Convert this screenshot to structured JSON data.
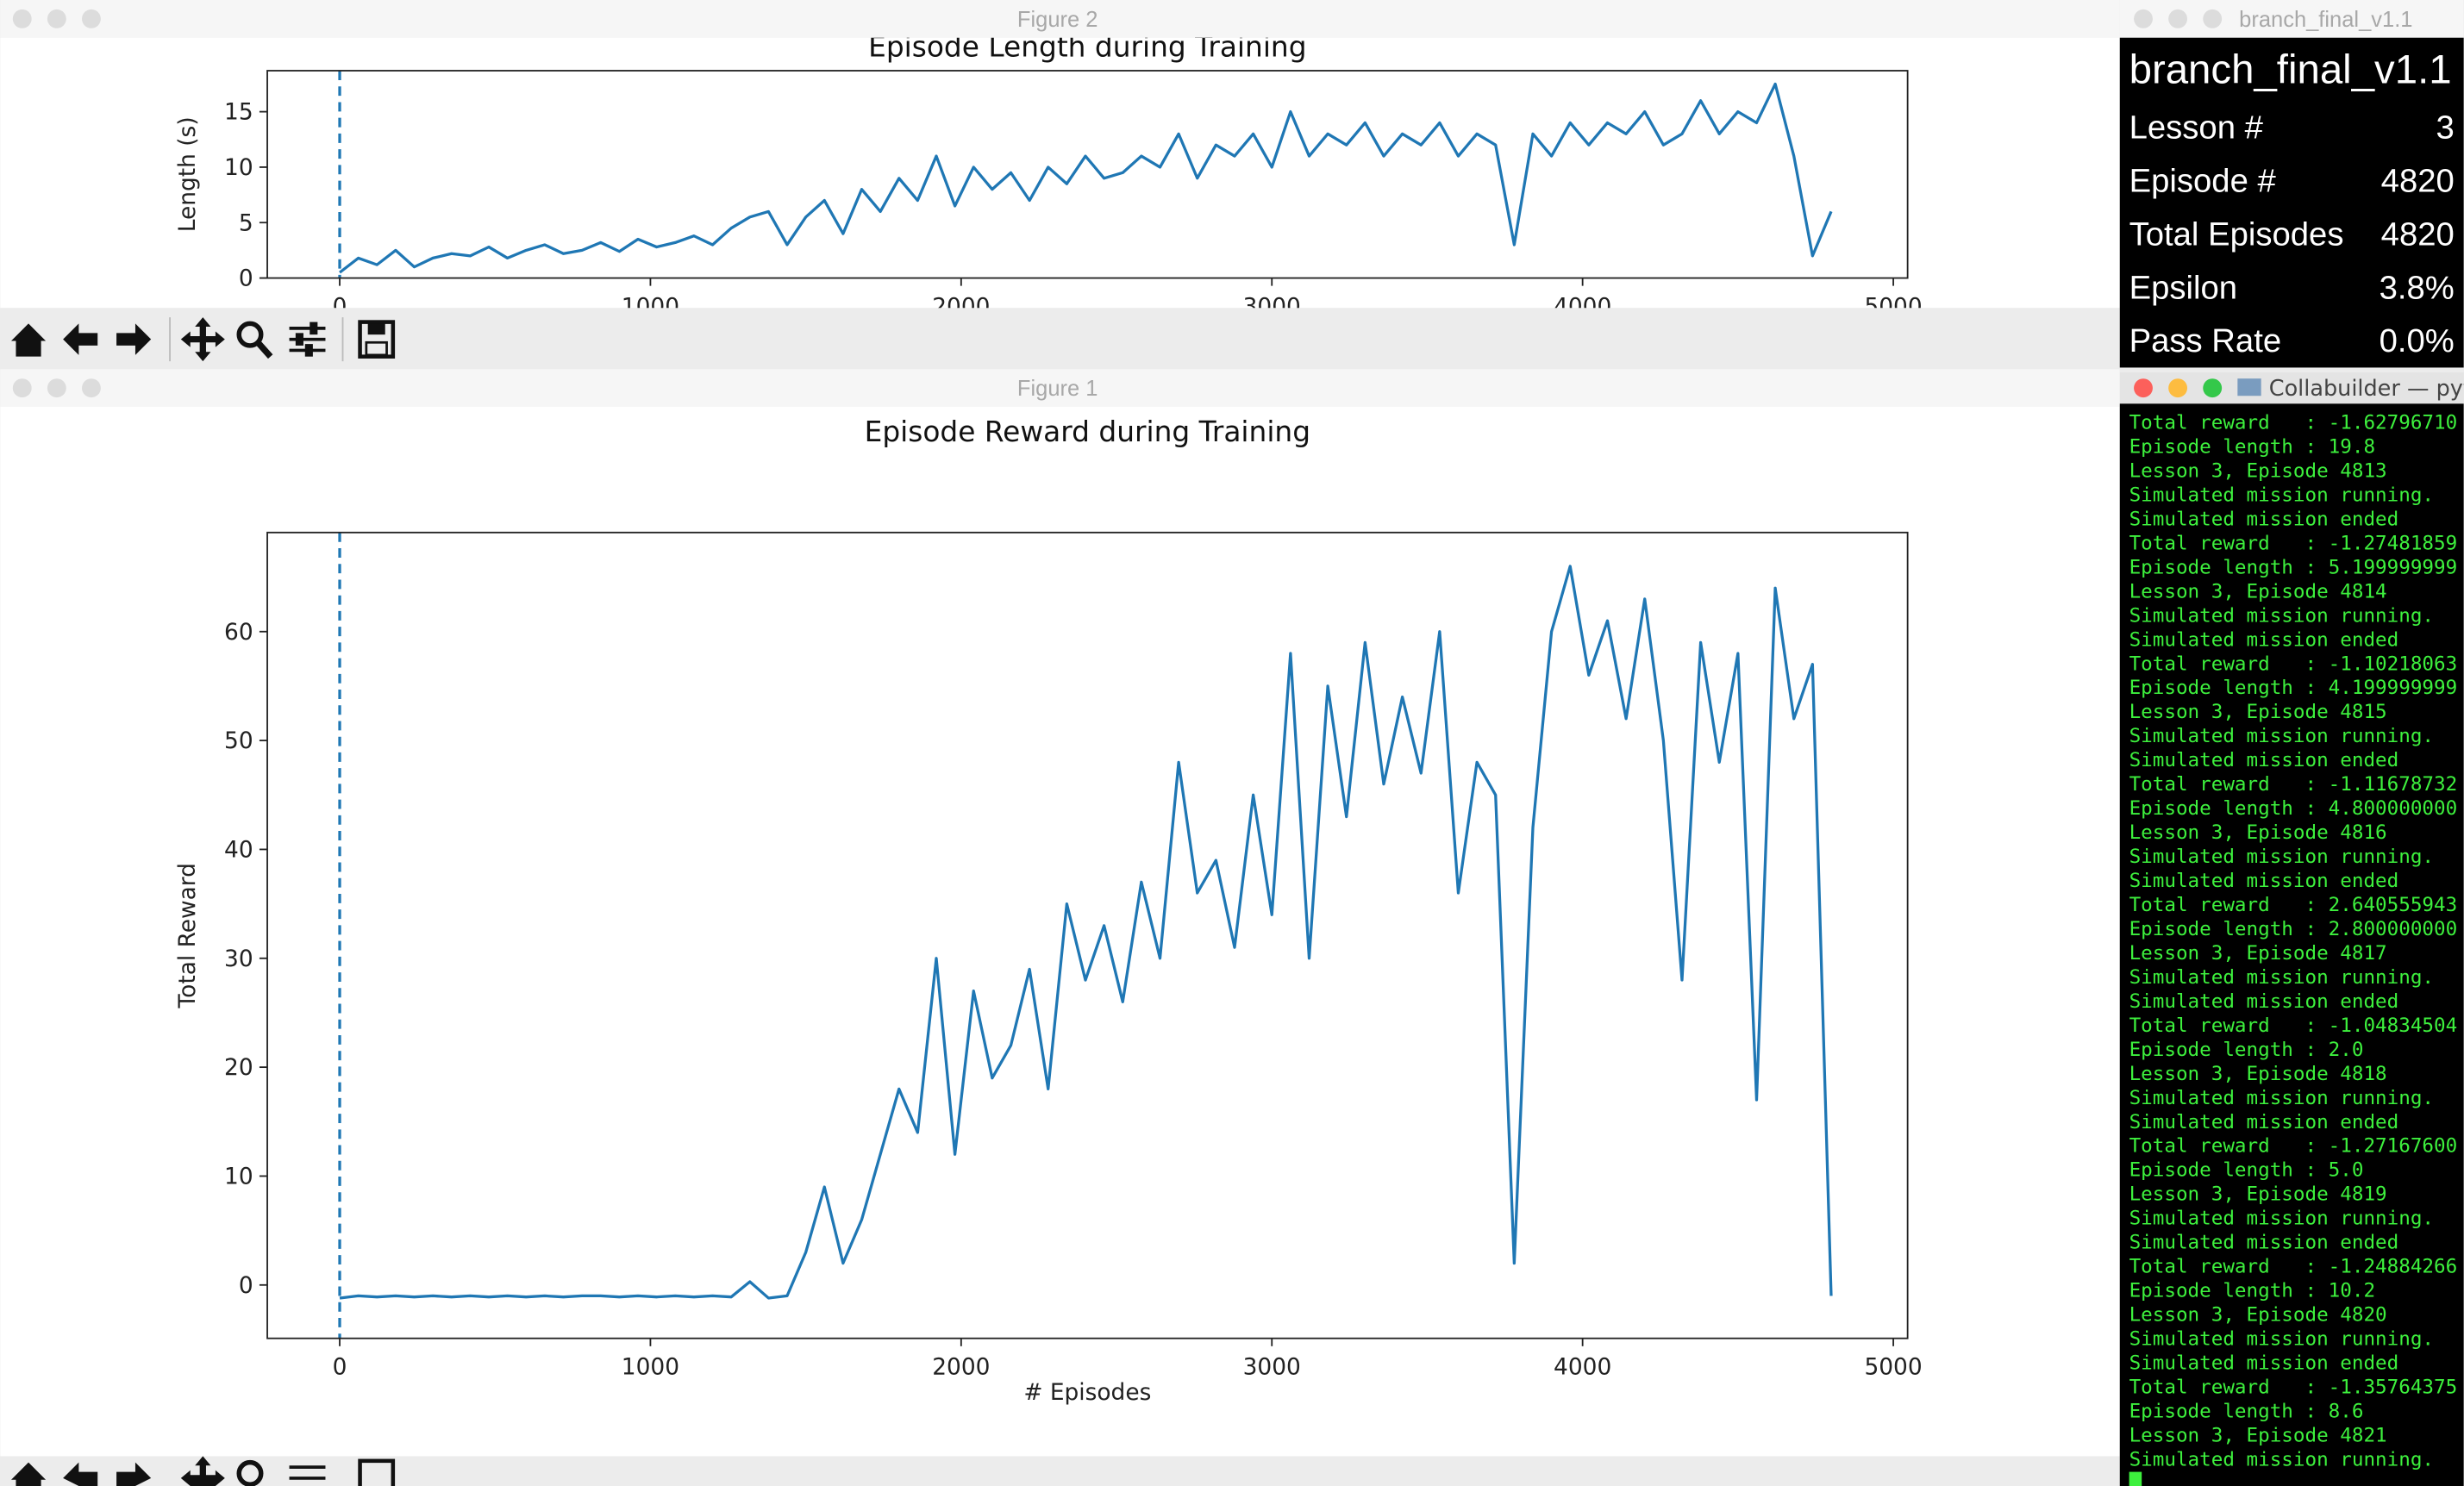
{
  "chart_data": [
    {
      "type": "line",
      "title": "Episode Length during Training",
      "ylabel": "Length (s)",
      "color": "#1f77b4",
      "vline": 0,
      "x": [
        0,
        60,
        120,
        180,
        240,
        300,
        360,
        420,
        480,
        540,
        600,
        660,
        720,
        780,
        840,
        900,
        960,
        1020,
        1080,
        1140,
        1200,
        1260,
        1320,
        1380,
        1440,
        1500,
        1560,
        1620,
        1680,
        1740,
        1800,
        1860,
        1920,
        1980,
        2040,
        2100,
        2160,
        2220,
        2280,
        2340,
        2400,
        2460,
        2520,
        2580,
        2640,
        2700,
        2760,
        2820,
        2880,
        2940,
        3000,
        3060,
        3120,
        3180,
        3240,
        3300,
        3360,
        3420,
        3480,
        3540,
        3600,
        3660,
        3720,
        3780,
        3840,
        3900,
        3960,
        4020,
        4080,
        4140,
        4200,
        4260,
        4320,
        4380,
        4440,
        4500,
        4560,
        4620,
        4680,
        4740,
        4800
      ],
      "values": [
        0.5,
        1.8,
        1.2,
        2.5,
        1,
        1.8,
        2.2,
        2,
        2.8,
        1.8,
        2.5,
        3,
        2.2,
        2.5,
        3.2,
        2.4,
        3.5,
        2.8,
        3.2,
        3.8,
        3,
        4.5,
        5.5,
        6,
        3,
        5.5,
        7,
        4,
        8,
        6,
        9,
        7,
        11,
        6.5,
        10,
        8,
        9.5,
        7,
        10,
        8.5,
        11,
        9,
        9.5,
        11,
        10,
        13,
        9,
        12,
        11,
        13,
        10,
        15,
        11,
        13,
        12,
        14,
        11,
        13,
        12,
        14,
        11,
        13,
        12,
        3,
        13,
        11,
        14,
        12,
        14,
        13,
        15,
        12,
        13,
        16,
        13,
        15,
        14,
        17.5,
        11,
        2,
        6
      ],
      "xlim": [
        -233,
        5046
      ],
      "xticks": [
        0,
        1000,
        2000,
        3000,
        4000,
        5000
      ],
      "ylim": [
        0,
        18.7
      ],
      "yticks": [
        0,
        5,
        10,
        15
      ]
    },
    {
      "type": "line",
      "title": "Episode Reward during Training",
      "xlabel": "# Episodes",
      "ylabel": "Total Reward",
      "color": "#1f77b4",
      "vline": 0,
      "x": [
        0,
        60,
        120,
        180,
        240,
        300,
        360,
        420,
        480,
        540,
        600,
        660,
        720,
        780,
        840,
        900,
        960,
        1020,
        1080,
        1140,
        1200,
        1260,
        1320,
        1380,
        1440,
        1500,
        1560,
        1620,
        1680,
        1740,
        1800,
        1860,
        1920,
        1980,
        2040,
        2100,
        2160,
        2220,
        2280,
        2340,
        2400,
        2460,
        2520,
        2580,
        2640,
        2700,
        2760,
        2820,
        2880,
        2940,
        3000,
        3060,
        3120,
        3180,
        3240,
        3300,
        3360,
        3420,
        3480,
        3540,
        3600,
        3660,
        3720,
        3780,
        3840,
        3900,
        3960,
        4020,
        4080,
        4140,
        4200,
        4260,
        4320,
        4380,
        4440,
        4500,
        4560,
        4620,
        4680,
        4740,
        4800
      ],
      "values": [
        -1.2,
        -1,
        -1.1,
        -1,
        -1.1,
        -1,
        -1.1,
        -1,
        -1.1,
        -1,
        -1.1,
        -1,
        -1.1,
        -1,
        -1,
        -1.1,
        -1,
        -1.1,
        -1,
        -1.1,
        -1,
        -1.1,
        0.3,
        -1.2,
        -1,
        3,
        9,
        2,
        6,
        12,
        18,
        14,
        30,
        12,
        27,
        19,
        22,
        29,
        18,
        35,
        28,
        33,
        26,
        37,
        30,
        48,
        36,
        39,
        31,
        45,
        34,
        58,
        30,
        55,
        43,
        59,
        46,
        54,
        47,
        60,
        36,
        48,
        45,
        2,
        42,
        60,
        66,
        56,
        61,
        52,
        63,
        50,
        28,
        59,
        48,
        58,
        17,
        64,
        52,
        57,
        -1
      ],
      "xlim": [
        -233,
        5046
      ],
      "xticks": [
        0,
        1000,
        2000,
        3000,
        4000,
        5000
      ],
      "ylim": [
        -4.9,
        69.1
      ],
      "yticks": [
        0,
        10,
        20,
        30,
        40,
        50,
        60
      ]
    }
  ],
  "windows": [
    {
      "title": "Figure 2"
    },
    {
      "title": "Figure 1"
    },
    {
      "title": "branch_final_v1.1"
    },
    {
      "title": "Collabuilder — pyth"
    }
  ],
  "info_panel": {
    "heading": "branch_final_v1.1",
    "rows": [
      {
        "label": "Lesson #",
        "value": "3"
      },
      {
        "label": "Episode #",
        "value": "4820"
      },
      {
        "label": "Total Episodes",
        "value": "4820"
      },
      {
        "label": "Epsilon",
        "value": "3.8%"
      },
      {
        "label": "Pass Rate",
        "value": "0.0%"
      }
    ]
  },
  "terminal": {
    "lines": [
      "Total reward   : -1.62796710",
      "Episode length : 19.8",
      "Lesson 3, Episode 4813",
      "Simulated mission running.",
      "Simulated mission ended",
      "Total reward   : -1.27481859",
      "Episode length : 5.199999999",
      "Lesson 3, Episode 4814",
      "Simulated mission running.",
      "Simulated mission ended",
      "Total reward   : -1.10218063",
      "Episode length : 4.199999999",
      "Lesson 3, Episode 4815",
      "Simulated mission running.",
      "Simulated mission ended",
      "Total reward   : -1.11678732",
      "Episode length : 4.800000000",
      "Lesson 3, Episode 4816",
      "Simulated mission running.",
      "Simulated mission ended",
      "Total reward   : 2.640555943",
      "Episode length : 2.800000000",
      "Lesson 3, Episode 4817",
      "Simulated mission running.",
      "Simulated mission ended",
      "Total reward   : -1.04834504",
      "Episode length : 2.0",
      "Lesson 3, Episode 4818",
      "Simulated mission running.",
      "Simulated mission ended",
      "Total reward   : -1.27167600",
      "Episode length : 5.0",
      "Lesson 3, Episode 4819",
      "Simulated mission running.",
      "Simulated mission ended",
      "Total reward   : -1.24884266",
      "Episode length : 10.2",
      "Lesson 3, Episode 4820",
      "Simulated mission running.",
      "Simulated mission ended",
      "Total reward   : -1.35764375",
      "Episode length : 8.6",
      "Lesson 3, Episode 4821",
      "Simulated mission running."
    ]
  }
}
